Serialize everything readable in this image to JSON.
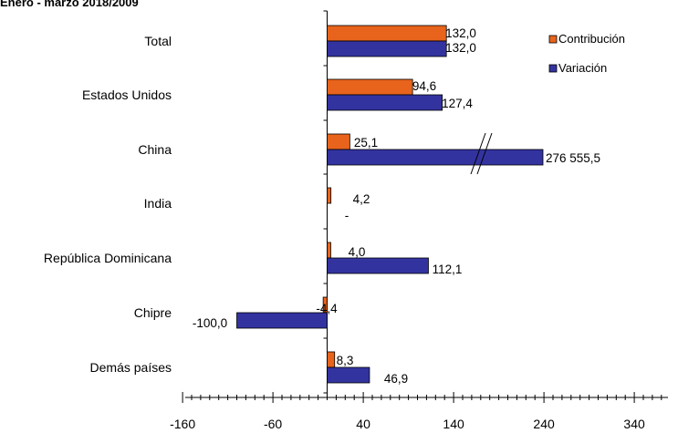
{
  "chart_data": {
    "type": "bar",
    "orientation": "horizontal",
    "title": "Enero - marzo 2018/2009",
    "categories": [
      "Total",
      "Estados Unidos",
      "China",
      "India",
      "República Dominicana",
      "Chipre",
      "Demás países"
    ],
    "series": [
      {
        "name": "Contribución",
        "color": "#e8641c",
        "values": [
          132.0,
          94.6,
          25.1,
          4.2,
          4.0,
          -4.4,
          8.3
        ],
        "labels": [
          "132,0",
          "94,6",
          "25,1",
          "4,2",
          "4,0",
          "-4,4",
          "8,3"
        ]
      },
      {
        "name": "Variación",
        "color": "#3333a0",
        "values": [
          132.0,
          127.4,
          276555.5,
          null,
          112.1,
          -100.0,
          46.9
        ],
        "labels": [
          "132,0",
          "127,4",
          "276 555,5",
          "-",
          "112,1",
          "-100,0",
          "46,9"
        ],
        "axis_break": "China"
      }
    ],
    "xlim": [
      -160,
      380
    ],
    "xticks": [
      -160,
      -60,
      40,
      140,
      240,
      340
    ],
    "xtick_labels": [
      "-160",
      "-60",
      "40",
      "140",
      "240",
      "340"
    ],
    "xlabel": "",
    "ylabel": "",
    "grid": false,
    "legend_position": "top-right"
  }
}
